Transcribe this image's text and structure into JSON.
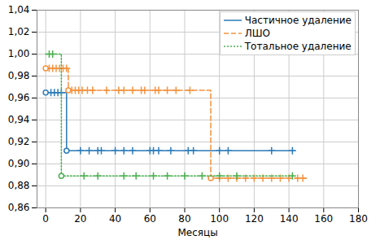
{
  "chart_data": {
    "type": "line",
    "x_label": "Месяцы",
    "xlim": [
      -5,
      180
    ],
    "xticks": [
      0,
      20,
      40,
      60,
      80,
      100,
      120,
      140,
      160,
      180
    ],
    "ylim": [
      0.86,
      1.04
    ],
    "yticks": [
      {
        "value": 0.86,
        "label": "0,86"
      },
      {
        "value": 0.88,
        "label": "0,88"
      },
      {
        "value": 0.9,
        "label": "0,90"
      },
      {
        "value": 0.92,
        "label": "0,92"
      },
      {
        "value": 0.94,
        "label": "0,94"
      },
      {
        "value": 0.96,
        "label": "0,96"
      },
      {
        "value": 0.98,
        "label": "0,98"
      },
      {
        "value": 1.0,
        "label": "1,00"
      },
      {
        "value": 1.02,
        "label": "1,02"
      },
      {
        "value": 1.04,
        "label": "1,04"
      }
    ],
    "grid": true,
    "legend": "upper right",
    "series": [
      {
        "name": "Частичное удаление",
        "color": "#2b7bb9",
        "line_style": "solid",
        "marker": "plus",
        "x": [
          0,
          12,
          143
        ],
        "values": [
          0.965,
          0.912,
          0.912
        ],
        "events": [
          0,
          12
        ],
        "event_values": [
          0.965,
          0.912
        ],
        "censored": [
          3,
          5,
          7,
          9,
          20,
          25,
          30,
          32,
          40,
          45,
          50,
          60,
          62,
          65,
          72,
          82,
          85,
          100,
          105,
          130,
          142
        ],
        "censored_values": [
          0.965,
          0.965,
          0.965,
          0.965,
          0.912,
          0.912,
          0.912,
          0.912,
          0.912,
          0.912,
          0.912,
          0.912,
          0.912,
          0.912,
          0.912,
          0.912,
          0.912,
          0.912,
          0.912,
          0.912,
          0.912
        ]
      },
      {
        "name": "ЛШО",
        "color": "#f5923e",
        "line_style": "dashed",
        "marker": "plus",
        "x": [
          0,
          13,
          95,
          150
        ],
        "values": [
          0.987,
          0.967,
          0.887,
          0.887
        ],
        "events": [
          0,
          13,
          95
        ],
        "event_values": [
          0.987,
          0.967,
          0.887
        ],
        "censored": [
          2,
          4,
          6,
          8,
          10,
          12,
          15,
          17,
          19,
          21,
          24,
          27,
          35,
          42,
          45,
          50,
          55,
          57,
          63,
          65,
          70,
          75,
          83,
          100,
          105,
          110,
          115,
          120,
          125,
          130,
          135,
          140,
          145,
          148
        ],
        "censored_values": [
          0.987,
          0.987,
          0.987,
          0.987,
          0.987,
          0.987,
          0.967,
          0.967,
          0.967,
          0.967,
          0.967,
          0.967,
          0.967,
          0.967,
          0.967,
          0.967,
          0.967,
          0.967,
          0.967,
          0.967,
          0.967,
          0.967,
          0.967,
          0.887,
          0.887,
          0.887,
          0.887,
          0.887,
          0.887,
          0.887,
          0.887,
          0.887,
          0.887,
          0.887
        ]
      },
      {
        "name": "Тотальное удаление",
        "color": "#4caf50",
        "line_style": "dotted",
        "marker": "plus",
        "x": [
          0,
          9,
          143
        ],
        "values": [
          1.0,
          0.889,
          0.889
        ],
        "events": [
          9
        ],
        "event_values": [
          0.889
        ],
        "censored": [
          2,
          4,
          22,
          30,
          45,
          52,
          62,
          70,
          80,
          90,
          100,
          110,
          142
        ],
        "censored_values": [
          1.0,
          1.0,
          0.889,
          0.889,
          0.889,
          0.889,
          0.889,
          0.889,
          0.889,
          0.889,
          0.889,
          0.889,
          0.889
        ]
      }
    ]
  }
}
